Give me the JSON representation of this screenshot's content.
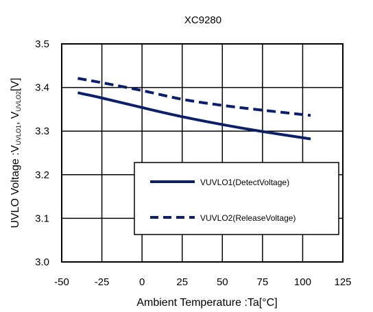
{
  "chart_data": {
    "type": "line",
    "title": "XC9280",
    "xlabel": "Ambient Temperature :Ta[°C]",
    "ylabel": {
      "main": "UVLO Voltage :V",
      "sub1": "UVLO1",
      "mid": ", V",
      "sub2": "UVLO2",
      "end": "[V]"
    },
    "xlim": [
      -50,
      125
    ],
    "ylim": [
      3.0,
      3.5
    ],
    "xticks": [
      -50,
      -25,
      0,
      25,
      50,
      75,
      100,
      125
    ],
    "yticks": [
      "3.0",
      "3.1",
      "3.2",
      "3.3",
      "3.4",
      "3.5"
    ],
    "grid": true,
    "legend_position": "lower-right",
    "series": [
      {
        "name": "VUVLO1(DetectVoltage)",
        "style": "solid",
        "color": "#0c1f6b",
        "x": [
          -40,
          -25,
          0,
          25,
          50,
          75,
          105
        ],
        "y": [
          3.388,
          3.376,
          3.354,
          3.333,
          3.315,
          3.299,
          3.282
        ]
      },
      {
        "name": "VUVLO2(ReleaseVoltage)",
        "style": "dashed",
        "color": "#0c1f6b",
        "x": [
          -40,
          -25,
          0,
          25,
          50,
          75,
          105
        ],
        "y": [
          3.421,
          3.411,
          3.393,
          3.373,
          3.359,
          3.348,
          3.336
        ]
      }
    ]
  }
}
